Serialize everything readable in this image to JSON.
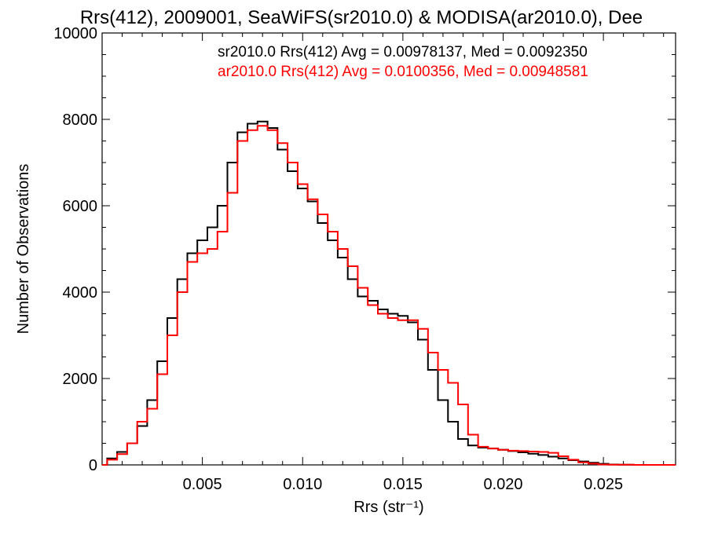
{
  "chart_data": {
    "type": "line",
    "title": "Rrs(412), 2009001, SeaWiFS(sr2010.0) & MODISA(ar2010.0), Dee",
    "xlabel": "Rrs (str⁻¹)",
    "ylabel": "Number of Observations",
    "xlim": [
      0.0,
      0.0286
    ],
    "ylim": [
      0,
      10000
    ],
    "x_ticks": [
      0.005,
      0.01,
      0.015,
      0.02,
      0.025
    ],
    "x_tick_labels": [
      "0.005",
      "0.010",
      "0.015",
      "0.020",
      "0.025"
    ],
    "y_ticks": [
      0,
      2000,
      4000,
      6000,
      8000,
      10000
    ],
    "y_tick_labels": [
      "0",
      "2000",
      "4000",
      "6000",
      "8000",
      "10000"
    ],
    "grid": false,
    "legend_position": "top-right",
    "series": [
      {
        "name": "sr2010.0",
        "legend_text": "sr2010.0 Rrs(412) Avg = 0.00978137, Med = 0.0092350",
        "color": "#000000",
        "x": [
          0.0,
          0.0005,
          0.001,
          0.0015,
          0.002,
          0.0025,
          0.003,
          0.0035,
          0.004,
          0.0045,
          0.005,
          0.0055,
          0.006,
          0.0065,
          0.007,
          0.0075,
          0.008,
          0.0085,
          0.009,
          0.0095,
          0.01,
          0.0105,
          0.011,
          0.0115,
          0.012,
          0.0125,
          0.013,
          0.0135,
          0.014,
          0.0145,
          0.015,
          0.0155,
          0.016,
          0.0165,
          0.017,
          0.0175,
          0.018,
          0.0185,
          0.019,
          0.0195,
          0.02,
          0.0205,
          0.021,
          0.0215,
          0.022,
          0.0225,
          0.023,
          0.0235,
          0.024,
          0.0245,
          0.025,
          0.0255,
          0.026,
          0.027,
          0.0286
        ],
        "y": [
          0,
          150,
          300,
          500,
          900,
          1500,
          2400,
          3400,
          4300,
          4900,
          5200,
          5500,
          6000,
          7000,
          7700,
          7900,
          7950,
          7800,
          7300,
          6800,
          6400,
          6100,
          5600,
          5200,
          4800,
          4300,
          3900,
          3800,
          3600,
          3500,
          3450,
          3300,
          2900,
          2200,
          1500,
          1000,
          600,
          450,
          400,
          380,
          350,
          320,
          290,
          260,
          230,
          190,
          150,
          110,
          80,
          50,
          25,
          10,
          5,
          0,
          0
        ]
      },
      {
        "name": "ar2010.0",
        "legend_text": "ar2010.0 Rrs(412) Avg = 0.0100356, Med = 0.00948581",
        "color": "#ff0000",
        "x": [
          0.0,
          0.0005,
          0.001,
          0.0015,
          0.002,
          0.0025,
          0.003,
          0.0035,
          0.004,
          0.0045,
          0.005,
          0.0055,
          0.006,
          0.0065,
          0.007,
          0.0075,
          0.008,
          0.0085,
          0.009,
          0.0095,
          0.01,
          0.0105,
          0.011,
          0.0115,
          0.012,
          0.0125,
          0.013,
          0.0135,
          0.014,
          0.0145,
          0.015,
          0.0155,
          0.016,
          0.0165,
          0.017,
          0.0175,
          0.018,
          0.0185,
          0.019,
          0.0195,
          0.02,
          0.0205,
          0.021,
          0.0215,
          0.022,
          0.0225,
          0.023,
          0.0235,
          0.024,
          0.0245,
          0.025,
          0.0255,
          0.026,
          0.027,
          0.0286
        ],
        "y": [
          0,
          120,
          250,
          500,
          1000,
          1300,
          2100,
          3000,
          4000,
          4700,
          4900,
          5000,
          5400,
          6300,
          7500,
          7750,
          7850,
          7750,
          7450,
          7000,
          6500,
          6150,
          5800,
          5400,
          5000,
          4600,
          4100,
          3700,
          3500,
          3400,
          3350,
          3350,
          3150,
          2600,
          2200,
          1900,
          1400,
          700,
          420,
          380,
          350,
          330,
          320,
          310,
          300,
          280,
          200,
          120,
          60,
          30,
          10,
          5,
          3,
          0,
          0
        ]
      }
    ]
  }
}
